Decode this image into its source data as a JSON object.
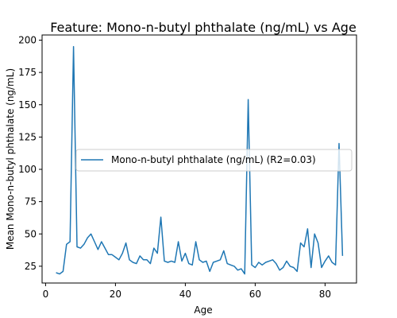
{
  "chart_data": {
    "type": "line",
    "title": "Feature: Mono-n-butyl phthalate (ng/mL) vs Age",
    "xlabel": "Age",
    "ylabel": "Mean Mono-n-butyl phthalate (ng/mL)",
    "xlim": [
      -1,
      89
    ],
    "ylim": [
      12,
      204
    ],
    "xticks": [
      0,
      20,
      40,
      60,
      80
    ],
    "yticks": [
      25,
      50,
      75,
      100,
      125,
      150,
      175,
      200
    ],
    "grid": false,
    "legend": {
      "placement": "center-right"
    },
    "series": [
      {
        "name": "Mono-n-butyl phthalate (ng/mL) (R2=0.03)",
        "color": "#1f77b4",
        "x": [
          3,
          4,
          5,
          6,
          7,
          8,
          9,
          10,
          11,
          12,
          13,
          14,
          15,
          16,
          17,
          18,
          19,
          20,
          21,
          22,
          23,
          24,
          25,
          26,
          27,
          28,
          29,
          30,
          31,
          32,
          33,
          34,
          35,
          36,
          37,
          38,
          39,
          40,
          41,
          42,
          43,
          44,
          45,
          46,
          47,
          48,
          49,
          50,
          51,
          52,
          53,
          54,
          55,
          56,
          57,
          58,
          59,
          60,
          61,
          62,
          63,
          64,
          65,
          66,
          67,
          68,
          69,
          70,
          71,
          72,
          73,
          74,
          75,
          76,
          77,
          78,
          79,
          80,
          81,
          82,
          83,
          84,
          85
        ],
        "y": [
          20,
          19,
          21,
          42,
          44,
          195,
          40,
          39,
          42,
          47,
          50,
          44,
          38,
          44,
          39,
          34,
          34,
          32,
          30,
          35,
          43,
          30,
          28,
          27,
          33,
          30,
          30,
          27,
          39,
          35,
          63,
          29,
          28,
          29,
          28,
          44,
          29,
          35,
          27,
          26,
          44,
          30,
          28,
          29,
          21,
          28,
          29,
          30,
          37,
          27,
          26,
          25,
          22,
          23,
          19,
          154,
          26,
          24,
          28,
          26,
          28,
          29,
          30,
          27,
          22,
          24,
          29,
          25,
          24,
          21,
          43,
          40,
          54,
          24,
          50,
          43,
          24,
          29,
          33,
          28,
          26,
          120,
          33
        ]
      }
    ]
  }
}
